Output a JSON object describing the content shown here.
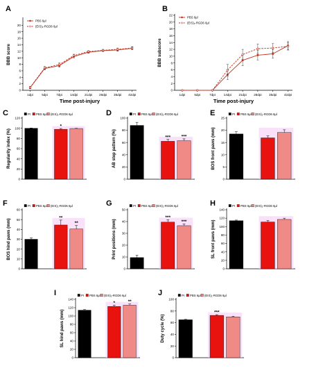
{
  "colors": {
    "pi": "#000000",
    "pbs": "#e8130f",
    "peptide": "#f08a86",
    "bar_halo": "#f2c8f4",
    "pbs_line": "#c0321d",
    "peptide_line": "#c0321d"
  },
  "figure": {
    "x_axis_title": "Time post-injury",
    "legend_line": {
      "pbs": "PBS 6µl",
      "peptide": "(EIS)₂-RGD6 6µl"
    },
    "legend_bar": {
      "pi": "PI",
      "pbs": "PBS 6µl",
      "peptide": "(EIS)₂-RGD6 6µl"
    }
  },
  "chart_data": [
    {
      "panel": "A",
      "type": "line",
      "ylabel": "BBB score",
      "xlabel": "Time post-injury",
      "ylim": [
        0,
        22
      ],
      "yticks": [
        0,
        2,
        4,
        6,
        8,
        10,
        12,
        14,
        16,
        18,
        20
      ],
      "x": [
        "1dpi",
        "5dpi",
        "7dpi",
        "14dpi",
        "21dpi",
        "28dpi",
        "35dpi",
        "42dpi"
      ],
      "series": [
        {
          "name": "PBS 6µl",
          "style": "solid",
          "values": [
            0.8,
            6.7,
            7.6,
            10.4,
            11.7,
            12.2,
            12.4,
            12.9
          ],
          "errors": [
            0.3,
            0.4,
            0.5,
            0.4,
            0.3,
            0.3,
            0.4,
            0.4
          ]
        },
        {
          "name": "(EIS)₂-RGD6 6µl",
          "style": "dashed",
          "values": [
            0.9,
            6.9,
            7.9,
            10.7,
            11.9,
            12.3,
            12.6,
            13.0
          ],
          "errors": [
            0.3,
            0.4,
            0.5,
            0.4,
            0.3,
            0.3,
            0.4,
            0.4
          ]
        }
      ]
    },
    {
      "panel": "B",
      "type": "line",
      "ylabel": "BBB subscore",
      "xlabel": "Time post-injury",
      "ylim": [
        0,
        22
      ],
      "yticks": [
        0,
        2,
        4,
        6,
        8,
        10,
        12,
        14,
        16,
        18,
        20,
        22
      ],
      "x": [
        "1dpi",
        "5dpi",
        "7dpi",
        "14dpi",
        "21dpi",
        "28dpi",
        "35dpi",
        "42dpi"
      ],
      "series": [
        {
          "name": "PBS 6µl",
          "style": "solid",
          "values": [
            0,
            0,
            0,
            4.6,
            8.8,
            10.3,
            10.7,
            13.1
          ],
          "errors": [
            0,
            0,
            0,
            1.5,
            1.6,
            1.4,
            1.3,
            1.2
          ]
        },
        {
          "name": "(EIS)₂-RGD6 6µl",
          "style": "dashed",
          "values": [
            0,
            0,
            0,
            5.9,
            10.5,
            12.2,
            12.4,
            12.9
          ],
          "errors": [
            0,
            0,
            0,
            1.7,
            1.5,
            1.4,
            1.3,
            1.1
          ]
        }
      ]
    },
    {
      "panel": "C",
      "type": "bar",
      "ylabel": "Regularity index (%)",
      "ylim": [
        0,
        120
      ],
      "yticks": [
        0,
        20,
        40,
        60,
        80,
        100,
        120
      ],
      "categories": [
        "PI",
        "PBS 6µl",
        "(EIS)₂-RGD6 6µl"
      ],
      "values": [
        100,
        98,
        99.5
      ],
      "errors": [
        0.5,
        1.5,
        0.5
      ],
      "significance": [
        "",
        "*",
        ""
      ]
    },
    {
      "panel": "D",
      "type": "bar",
      "ylabel": "AB step pattern (%)",
      "ylim": [
        0,
        100
      ],
      "yticks": [
        0,
        20,
        40,
        60,
        80,
        100
      ],
      "categories": [
        "PI",
        "PBS 6µl",
        "(EIS)₂-RGD6 6µl"
      ],
      "values": [
        88,
        62,
        63
      ],
      "errors": [
        5,
        3,
        3
      ],
      "significance": [
        "",
        "***",
        "***"
      ]
    },
    {
      "panel": "E",
      "type": "bar",
      "ylabel": "BOS front paws (mm)",
      "ylim": [
        0,
        25
      ],
      "yticks": [
        0,
        5,
        10,
        15,
        20,
        25
      ],
      "categories": [
        "PI",
        "PBS 6µl",
        "(EIS)₂-RGD6 6µl"
      ],
      "values": [
        18.5,
        16.9,
        19.1
      ],
      "errors": [
        0.9,
        0.8,
        1.1
      ],
      "significance": [
        "",
        "",
        ""
      ]
    },
    {
      "panel": "F",
      "type": "bar",
      "ylabel": "BOS hind paws (mm)",
      "ylim": [
        0,
        60
      ],
      "yticks": [
        0,
        10,
        20,
        30,
        40,
        50,
        60
      ],
      "categories": [
        "PI",
        "PBS 6µl",
        "(EIS)₂-RGD6 6µl"
      ],
      "values": [
        30,
        44.5,
        40.5
      ],
      "errors": [
        1.5,
        5,
        3.5
      ],
      "significance": [
        "",
        "**",
        "**"
      ]
    },
    {
      "panel": "G",
      "type": "bar",
      "ylabel": "Print positions (mm)",
      "ylim": [
        0,
        50
      ],
      "yticks": [
        0,
        10,
        20,
        30,
        40,
        50
      ],
      "categories": [
        "PI",
        "PBS 6µl",
        "(EIS)₂-RGD6 6µl"
      ],
      "values": [
        9.5,
        39.5,
        36.5
      ],
      "errors": [
        2,
        2,
        1.5
      ],
      "significance": [
        "",
        "***",
        "***"
      ]
    },
    {
      "panel": "H",
      "type": "bar",
      "ylabel": "SL front paws (mm)",
      "ylim": [
        0,
        140
      ],
      "yticks": [
        0,
        20,
        40,
        60,
        80,
        100,
        120,
        140
      ],
      "categories": [
        "PI",
        "PBS 6µl",
        "(EIS)₂-RGD6 6µl"
      ],
      "values": [
        114,
        111,
        117
      ],
      "errors": [
        1.5,
        3.5,
        3
      ],
      "significance": [
        "",
        "",
        ""
      ]
    },
    {
      "panel": "I",
      "type": "bar",
      "ylabel": "SL hind paws (mm)",
      "ylim": [
        0,
        140
      ],
      "yticks": [
        0,
        20,
        40,
        60,
        80,
        100,
        120,
        140
      ],
      "categories": [
        "PI",
        "PBS 6µl",
        "(EIS)₂-RGD6 6µl"
      ],
      "values": [
        114,
        123,
        126
      ],
      "errors": [
        1.5,
        3,
        3
      ],
      "significance": [
        "",
        "*",
        "**"
      ]
    },
    {
      "panel": "J",
      "type": "bar",
      "ylabel": "Duty cycle (%)",
      "ylim": [
        0,
        100
      ],
      "yticks": [
        0,
        20,
        40,
        60,
        80,
        100
      ],
      "categories": [
        "PI",
        "PBS 6µl",
        "(EIS)₂-RGD6 6µl"
      ],
      "values": [
        65,
        72.5,
        70
      ],
      "errors": [
        0.8,
        1.2,
        1
      ],
      "significance": [
        "",
        "***",
        ""
      ]
    }
  ]
}
